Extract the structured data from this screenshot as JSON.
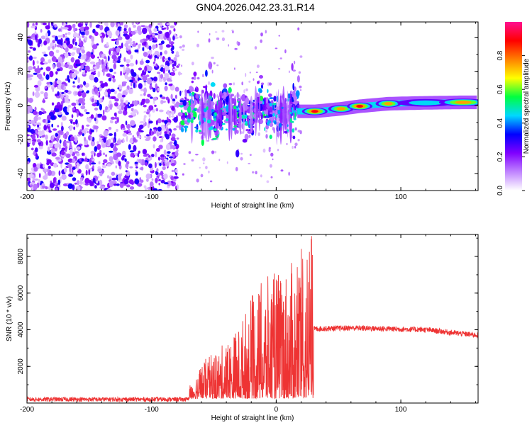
{
  "chart_data": [
    {
      "type": "heatmap",
      "title": "GN04.2026.042.23.31.R14",
      "xlabel": "Height of straight line (km)",
      "ylabel": "Frequency (Hz)",
      "xlim": [
        -200,
        162
      ],
      "ylim": [
        -50,
        49
      ],
      "xticks": [
        -200,
        -100,
        0,
        100
      ],
      "yticks": [
        -40,
        -20,
        0,
        20,
        40
      ],
      "xtick_labels": [
        "-200",
        "-100",
        "0",
        "100"
      ],
      "ytick_labels": [
        "-40",
        "-20",
        "0",
        "20",
        "40"
      ],
      "noise_region_km": [
        -200,
        -79
      ],
      "meteor_band": [
        {
          "x": -75,
          "y": -8
        },
        {
          "x": -68,
          "y": 4
        },
        {
          "x": -60,
          "y": -6
        },
        {
          "x": -55,
          "y": 2
        },
        {
          "x": -48,
          "y": -10
        },
        {
          "x": -42,
          "y": 3
        },
        {
          "x": -35,
          "y": -6
        },
        {
          "x": -28,
          "y": -2
        },
        {
          "x": -20,
          "y": -8
        },
        {
          "x": -12,
          "y": 2
        },
        {
          "x": -5,
          "y": -4
        },
        {
          "x": 5,
          "y": -2
        },
        {
          "x": 12,
          "y": 1
        }
      ],
      "tail_blobs": [
        {
          "x": 31,
          "y": -3.5,
          "amp": 1.0
        },
        {
          "x": 52,
          "y": -2.0,
          "amp": 0.85
        },
        {
          "x": 67,
          "y": -0.5,
          "amp": 0.9
        },
        {
          "x": 90,
          "y": 1.0,
          "amp": 0.85
        },
        {
          "x": 120,
          "y": 1.5,
          "amp": 0.55
        },
        {
          "x": 150,
          "y": 1.8,
          "amp": 0.8
        }
      ],
      "colorbar": {
        "label": "Normalized spectral amplitude",
        "range": [
          0,
          1
        ],
        "ticks": [
          "0.0",
          "0.2",
          "0.4",
          "0.6",
          "0.8"
        ],
        "colors": [
          "#ffffff",
          "#c084ff",
          "#8000ff",
          "#0000ff",
          "#00d8ff",
          "#00ff40",
          "#ffff00",
          "#ff8000",
          "#ff0000",
          "#ff1090"
        ]
      }
    },
    {
      "type": "line",
      "xlabel": "Height of straight line (km)",
      "ylabel": "SNR (10 * v/v)",
      "xlim": [
        -200,
        162
      ],
      "ylim": [
        0,
        9200
      ],
      "xticks": [
        -200,
        -100,
        0,
        100
      ],
      "yticks": [
        2000,
        4000,
        6000,
        8000
      ],
      "xtick_labels": [
        "-200",
        "-100",
        "0",
        "100"
      ],
      "ytick_labels": [
        "2000",
        "4000",
        "6000",
        "8000"
      ],
      "color": "#ee3333",
      "segments": [
        {
          "x": [
            -200,
            -70
          ],
          "baseline": 200,
          "noise": 120
        },
        {
          "x": [
            -70,
            30
          ],
          "envelope": [
            [
              -70,
              700
            ],
            [
              -60,
              2000
            ],
            [
              -45,
              2800
            ],
            [
              -30,
              4000
            ],
            [
              -20,
              5600
            ],
            [
              -10,
              6500
            ],
            [
              0,
              7000
            ],
            [
              15,
              7500
            ],
            [
              28,
              9200
            ]
          ]
        },
        {
          "x": [
            30,
            162
          ],
          "values": [
            [
              30,
              4050
            ],
            [
              60,
              4100
            ],
            [
              90,
              4050
            ],
            [
              120,
              4000
            ],
            [
              140,
              3850
            ],
            [
              162,
              3700
            ]
          ],
          "noise": 150
        }
      ]
    }
  ]
}
